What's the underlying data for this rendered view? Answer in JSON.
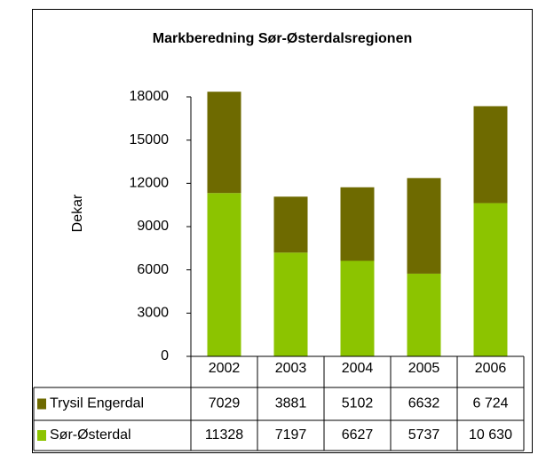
{
  "chart_data": {
    "type": "stacked_bar",
    "title": "Markberedning Sør-Østerdalsregionen",
    "y_label": "Dekar",
    "categories": [
      "2002",
      "2003",
      "2004",
      "2005",
      "2006"
    ],
    "series": [
      {
        "name": "Sør-Østerdal",
        "color": "#8cc400",
        "values": [
          11328,
          7197,
          6627,
          5737,
          10630
        ],
        "value_labels": [
          "11328",
          "7197",
          "6627",
          "5737",
          "10 630"
        ]
      },
      {
        "name": "Trysil Engerdal",
        "color": "#6e6a00",
        "values": [
          7029,
          3881,
          5102,
          6632,
          6724
        ],
        "value_labels": [
          "7029",
          "3881",
          "5102",
          "6632",
          "6 724"
        ]
      }
    ],
    "ylim": [
      0,
      18000
    ],
    "yticks": [
      0,
      3000,
      6000,
      9000,
      12000,
      15000,
      18000
    ],
    "grid": false
  }
}
